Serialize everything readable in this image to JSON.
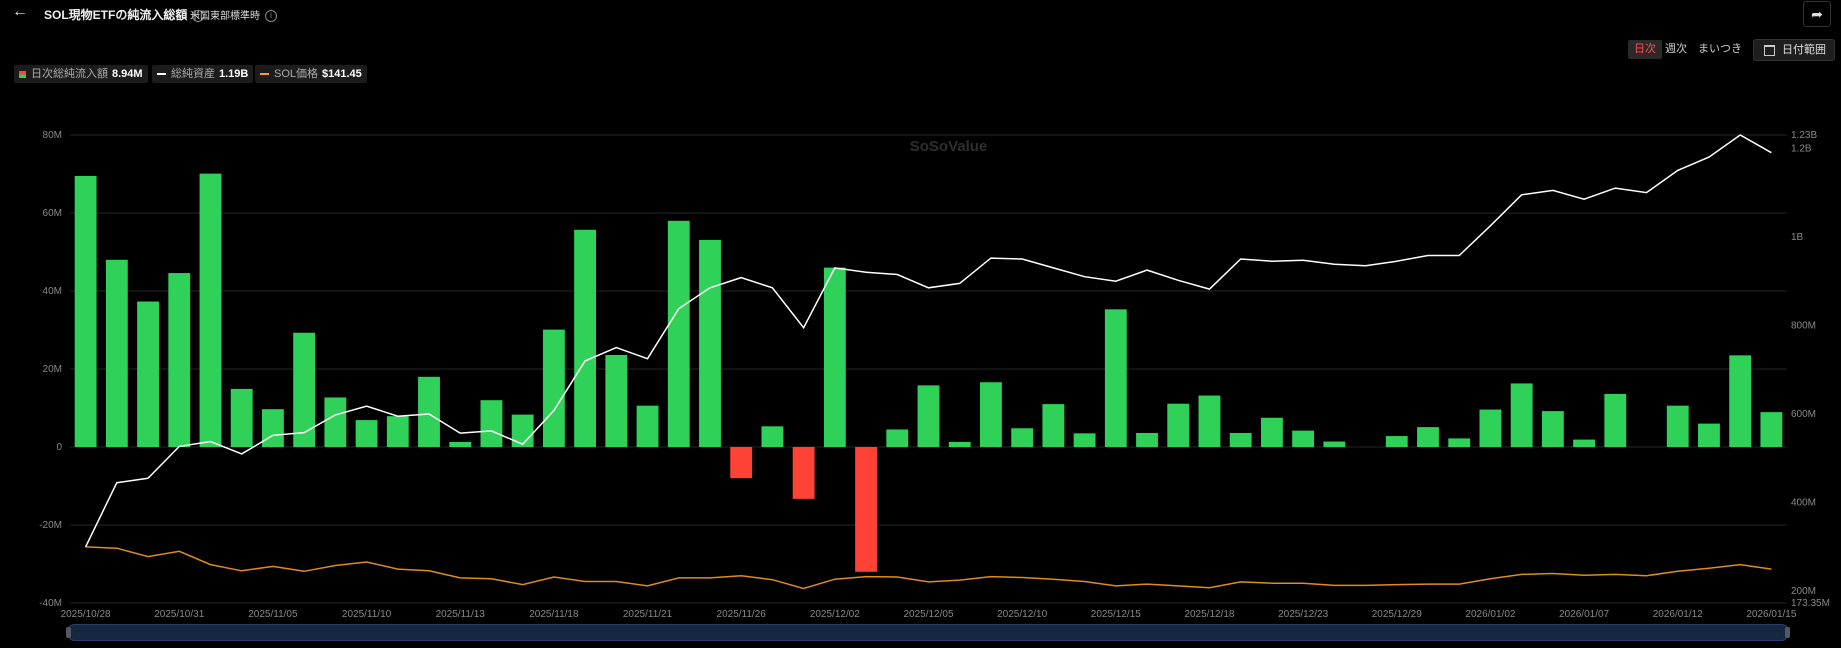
{
  "header": {
    "back_icon": "arrow-left-icon",
    "title": "SOL現物ETFの純流入総額",
    "timezone": "米国東部標準時",
    "share_icon": "share-icon"
  },
  "periods": [
    {
      "label": "日次",
      "active": true
    },
    {
      "label": "週次",
      "active": false
    },
    {
      "label": "まいつき",
      "active": false
    }
  ],
  "date_range_label": "日付範囲",
  "legend": [
    {
      "label": "日次総純流入額",
      "value": "8.94M",
      "color": "#2fd158"
    },
    {
      "label": "総純資産",
      "value": "1.19B",
      "color": "#ffffff"
    },
    {
      "label": "SOL価格",
      "value": "$141.45",
      "color": "#f7a21a"
    }
  ],
  "watermark": "SoSoValue",
  "colors": {
    "positive": "#2fd158",
    "negative": "#ff4136",
    "assets_line": "#ffffff",
    "price_line": "#e08c18",
    "navigator": "#162742"
  },
  "chart_data": {
    "type": "bar",
    "x_tick_labels": [
      "2025/10/28",
      "2025/10/31",
      "2025/11/05",
      "2025/11/10",
      "2025/11/13",
      "2025/11/18",
      "2025/11/21",
      "2025/11/26",
      "2025/12/02",
      "2025/12/05",
      "2025/12/10",
      "2025/12/15",
      "2025/12/18",
      "2025/12/23",
      "2025/12/29",
      "2026/01/02",
      "2026/01/07",
      "2026/01/12",
      "2026/01/15"
    ],
    "x_tick_indices": [
      0,
      3,
      6,
      9,
      12,
      15,
      18,
      21,
      24,
      27,
      30,
      33,
      36,
      39,
      42,
      45,
      48,
      51,
      54
    ],
    "left_axis": {
      "ticks": [
        "80M",
        "60M",
        "40M",
        "20M",
        "0",
        "-20M",
        "-40M"
      ],
      "values": [
        80,
        60,
        40,
        20,
        0,
        -20,
        -40
      ],
      "range": [
        -40,
        80
      ],
      "unit": "M"
    },
    "right_axis": {
      "ticks": [
        "1.2B",
        "1B",
        "800M",
        "600M",
        "400M",
        "200M"
      ],
      "values": [
        1200,
        1000,
        800,
        600,
        400,
        200
      ],
      "range": [
        173.35,
        1230
      ],
      "unit": "M",
      "max_label": "1.23B",
      "min_label": "173.35M"
    },
    "series": [
      {
        "name": "日次総純流入額",
        "type": "bar",
        "axis": "left",
        "values": [
          69.5,
          48,
          37.3,
          44.6,
          70.1,
          14.9,
          9.7,
          29.3,
          12.7,
          6.9,
          7.9,
          18,
          1.3,
          12,
          8.3,
          30.1,
          55.7,
          23.6,
          10.6,
          58,
          53.1,
          -8,
          5.3,
          -13.3,
          46,
          -32,
          4.5,
          15.8,
          1.3,
          16.6,
          4.8,
          11,
          3.5,
          35.3,
          3.6,
          11.1,
          13.2,
          3.6,
          7.5,
          4.2,
          1.4,
          0,
          2.8,
          5.1,
          2.2,
          9.6,
          16.3,
          9.2,
          1.9,
          13.6,
          0,
          10.6,
          6,
          23.5,
          8.94
        ]
      },
      {
        "name": "総純資産",
        "type": "line",
        "axis": "right",
        "values": [
          300,
          445,
          455,
          527,
          538,
          510,
          552,
          558,
          598,
          618,
          595,
          600,
          557,
          562,
          532,
          608,
          720,
          750,
          725,
          838,
          885,
          908,
          885,
          795,
          930,
          920,
          915,
          885,
          895,
          952,
          950,
          930,
          910,
          900,
          925,
          902,
          882,
          950,
          945,
          947,
          938,
          935,
          945,
          958,
          958,
          1025,
          1095,
          1105,
          1085,
          1110,
          1100,
          1150,
          1180,
          1230,
          1190
        ]
      },
      {
        "name": "SOL価格",
        "type": "line",
        "axis": "right",
        "values": [
          300,
          297,
          278,
          290,
          260,
          246,
          256,
          245,
          258,
          266,
          250,
          246,
          230,
          228,
          215,
          232,
          222,
          222,
          212,
          230,
          230,
          235,
          226,
          206,
          227,
          233,
          232,
          221,
          225,
          233,
          231,
          227,
          222,
          212,
          216,
          212,
          208,
          221,
          218,
          218,
          213,
          213,
          215,
          216,
          216,
          228,
          238,
          240,
          236,
          238,
          235,
          245,
          252,
          260,
          250
        ]
      }
    ],
    "legend_position": "top-left",
    "grid": true
  }
}
